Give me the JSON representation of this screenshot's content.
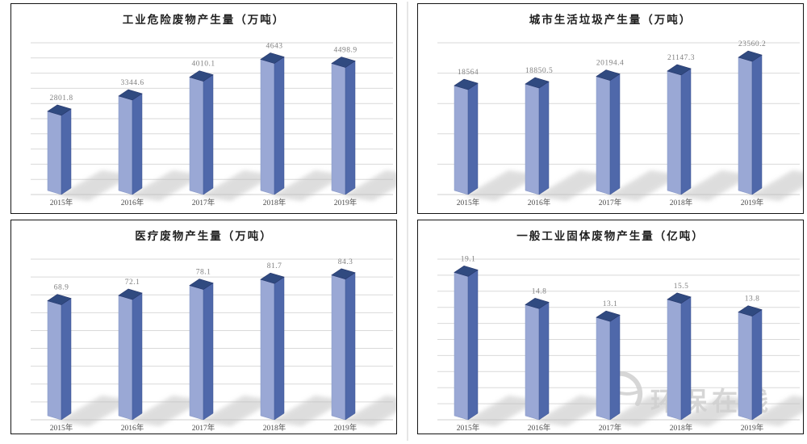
{
  "page": {
    "background_color": "#ffffff",
    "layout": "2x2-chart-grid"
  },
  "colors": {
    "bar_front_face": "#9aa8d5",
    "bar_side_face": "#4f68aa",
    "bar_top_face": "#304a80",
    "gridline": "#d9d9d9",
    "baseline": "#cfcfcf",
    "shadow": "#bdbdbd",
    "value_label": "#7f7f7f",
    "axis_label": "#4a4a4a",
    "title_text": "#1f1f1f",
    "panel_border": "#141414",
    "watermark": "#d0d0d0"
  },
  "watermark": {
    "text": "环保在线",
    "logo": "swoosh-circle"
  },
  "chart_data": [
    {
      "type": "bar",
      "title": "工业危险废物产生量（万吨）",
      "unit": "万吨",
      "categories": [
        "2015年",
        "2016年",
        "2017年",
        "2018年",
        "2019年"
      ],
      "values": [
        2801.8,
        3344.6,
        4010.1,
        4643,
        4498.9
      ],
      "value_labels": [
        "2801.8",
        "3344.6",
        "4010.1",
        "4643",
        "4498.9"
      ],
      "xlabel": "",
      "ylabel": "",
      "ylim": [
        0,
        5000
      ],
      "gridline_count": 10,
      "grid": true,
      "legend": "none",
      "style": "3d-column"
    },
    {
      "type": "bar",
      "title": "城市生活垃圾产生量（万吨）",
      "unit": "万吨",
      "categories": [
        "2015年",
        "2016年",
        "2017年",
        "2018年",
        "2019年"
      ],
      "values": [
        18564,
        18850.5,
        20194.4,
        21147.3,
        23560.2
      ],
      "value_labels": [
        "18564",
        "18850.5",
        "20194.4",
        "21147.3",
        "23560.2"
      ],
      "xlabel": "",
      "ylabel": "",
      "ylim": [
        0,
        25000
      ],
      "gridline_count": 5,
      "grid": true,
      "legend": "none",
      "style": "3d-column"
    },
    {
      "type": "bar",
      "title": "医疗废物产生量（万吨）",
      "unit": "万吨",
      "categories": [
        "2015年",
        "2016年",
        "2017年",
        "2018年",
        "2019年"
      ],
      "values": [
        68.9,
        72.1,
        78.1,
        81.7,
        84.3
      ],
      "value_labels": [
        "68.9",
        "72.1",
        "78.1",
        "81.7",
        "84.3"
      ],
      "xlabel": "",
      "ylabel": "",
      "ylim": [
        0,
        90
      ],
      "gridline_count": 9,
      "grid": true,
      "legend": "none",
      "style": "3d-column"
    },
    {
      "type": "bar",
      "title": "一般工业固体废物产生量（亿吨）",
      "unit": "亿吨",
      "categories": [
        "2015年",
        "2016年",
        "2017年",
        "2018年",
        "2019年"
      ],
      "values": [
        19.1,
        14.8,
        13.1,
        15.5,
        13.8
      ],
      "value_labels": [
        "19.1",
        "14.8",
        "13.1",
        "15.5",
        "13.8"
      ],
      "xlabel": "",
      "ylabel": "",
      "ylim": [
        0,
        20
      ],
      "gridline_count": 10,
      "grid": true,
      "legend": "none",
      "style": "3d-column"
    }
  ]
}
